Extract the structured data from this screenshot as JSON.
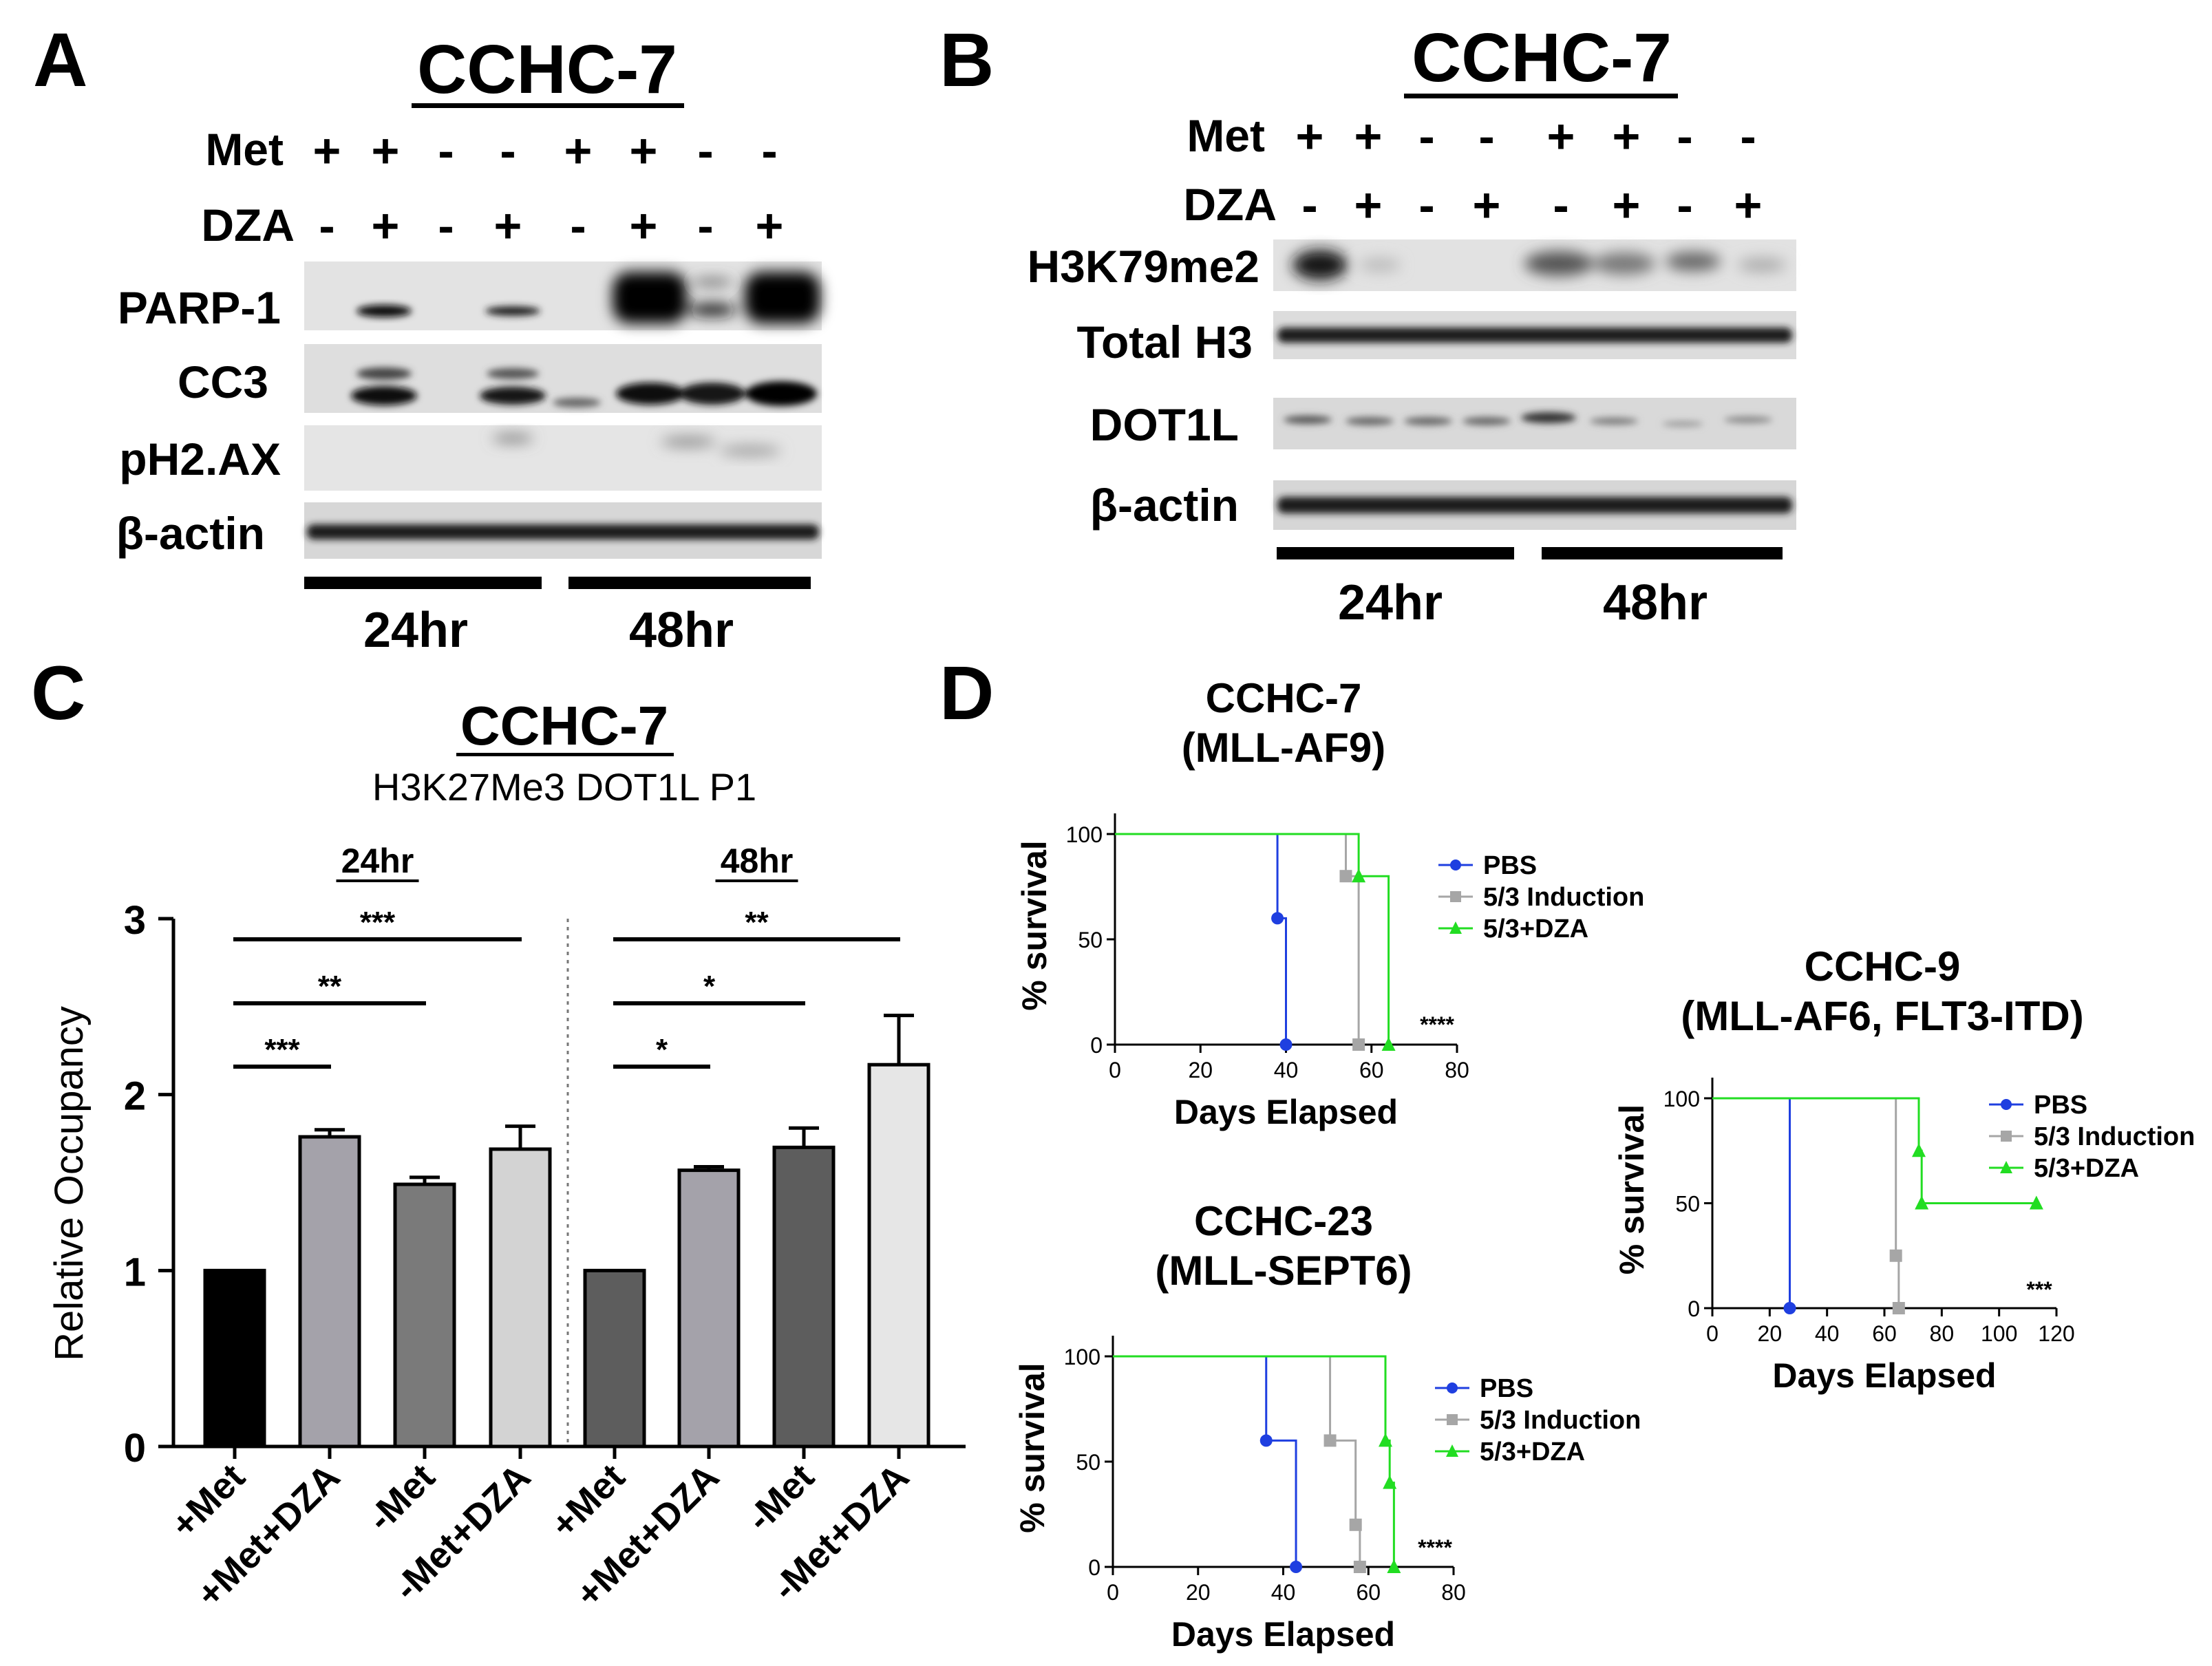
{
  "panel_a": {
    "letter": "A",
    "title": "CCHC-7",
    "row_met_label": "Met",
    "row_dza_label": "DZA",
    "met": [
      "+",
      "+",
      "-",
      "-",
      "+",
      "+",
      "-",
      "-"
    ],
    "dza": [
      "-",
      "+",
      "-",
      "+",
      "-",
      "+",
      "-",
      "+"
    ],
    "blots": [
      "PARP-1",
      "CC3",
      "pH2.AX",
      "β-actin"
    ],
    "times": [
      "24hr",
      "48hr"
    ]
  },
  "panel_b": {
    "letter": "B",
    "title": "CCHC-7",
    "row_met_label": "Met",
    "row_dza_label": "DZA",
    "met": [
      "+",
      "+",
      "-",
      "-",
      "+",
      "+",
      "-",
      "-"
    ],
    "dza": [
      "-",
      "+",
      "-",
      "+",
      "-",
      "+",
      "-",
      "+"
    ],
    "blots": [
      "H3K79me2",
      "Total H3",
      "DOT1L",
      "β-actin"
    ],
    "times": [
      "24hr",
      "48hr"
    ]
  },
  "panel_c": {
    "letter": "C"
  },
  "panel_d": {
    "letter": "D"
  },
  "chart_data": [
    {
      "type": "bar",
      "title": "CCHC-7",
      "subtitle": "H3K27Me3 DOT1L P1",
      "group_labels": [
        "24hr",
        "48hr"
      ],
      "categories": [
        "+Met",
        "+Met+DZA",
        "-Met",
        "-Met+DZA",
        "+Met",
        "+Met+DZA",
        "-Met",
        "-Met+DZA"
      ],
      "values": [
        1.0,
        1.76,
        1.49,
        1.69,
        1.0,
        1.57,
        1.7,
        2.17
      ],
      "errors": [
        0,
        0.04,
        0.04,
        0.13,
        0,
        0.02,
        0.11,
        0.28
      ],
      "colors": [
        "#000000",
        "#a4a2aa",
        "#7a7a7a",
        "#d3d3d3",
        "#5d5d5d",
        "#a4a2aa",
        "#5d5d5d",
        "#e6e6e6"
      ],
      "ylabel": "Relative Occupancy",
      "xlabel": "",
      "ylim": [
        0,
        3
      ],
      "yticks": [
        0,
        1,
        2,
        3
      ],
      "significance": [
        {
          "from": 0,
          "to": 1,
          "label": "***"
        },
        {
          "from": 0,
          "to": 2,
          "label": "**"
        },
        {
          "from": 0,
          "to": 3,
          "label": "***"
        },
        {
          "from": 4,
          "to": 5,
          "label": "*"
        },
        {
          "from": 4,
          "to": 6,
          "label": "*"
        },
        {
          "from": 4,
          "to": 7,
          "label": "**"
        }
      ]
    },
    {
      "type": "line",
      "title": "CCHC-7",
      "subtitle": "(MLL-AF9)",
      "xlabel": "Days Elapsed",
      "ylabel": "% survival",
      "xlim": [
        0,
        80
      ],
      "ylim": [
        0,
        100
      ],
      "xticks": [
        0,
        20,
        40,
        60,
        80
      ],
      "yticks": [
        0,
        50,
        100
      ],
      "annotation": "****",
      "series": [
        {
          "name": "PBS",
          "color": "#1f3fe0",
          "marker": "circle",
          "steps": [
            [
              0,
              100
            ],
            [
              38,
              100
            ],
            [
              38,
              60
            ],
            [
              40,
              60
            ],
            [
              40,
              0
            ]
          ],
          "points": [
            [
              38,
              60
            ],
            [
              40,
              0
            ]
          ]
        },
        {
          "name": "5/3 Induction",
          "color": "#a6a6a6",
          "marker": "square",
          "steps": [
            [
              0,
              100
            ],
            [
              54,
              100
            ],
            [
              54,
              80
            ],
            [
              57,
              80
            ],
            [
              57,
              0
            ]
          ],
          "points": [
            [
              54,
              80
            ],
            [
              57,
              0
            ]
          ]
        },
        {
          "name": "5/3+DZA",
          "color": "#22dd22",
          "marker": "triangle",
          "steps": [
            [
              0,
              100
            ],
            [
              57,
              100
            ],
            [
              57,
              80
            ],
            [
              64,
              80
            ],
            [
              64,
              0
            ]
          ],
          "points": [
            [
              57,
              80
            ],
            [
              64,
              0
            ]
          ]
        }
      ]
    },
    {
      "type": "line",
      "title": "CCHC-23",
      "subtitle": "(MLL-SEPT6)",
      "xlabel": "Days Elapsed",
      "ylabel": "% survival",
      "xlim": [
        0,
        80
      ],
      "ylim": [
        0,
        100
      ],
      "xticks": [
        0,
        20,
        40,
        60,
        80
      ],
      "yticks": [
        0,
        50,
        100
      ],
      "annotation": "****",
      "series": [
        {
          "name": "PBS",
          "color": "#1f3fe0",
          "marker": "circle",
          "steps": [
            [
              0,
              100
            ],
            [
              36,
              100
            ],
            [
              36,
              60
            ],
            [
              43,
              60
            ],
            [
              43,
              0
            ]
          ],
          "points": [
            [
              36,
              60
            ],
            [
              43,
              0
            ]
          ]
        },
        {
          "name": "5/3 Induction",
          "color": "#a6a6a6",
          "marker": "square",
          "steps": [
            [
              0,
              100
            ],
            [
              51,
              100
            ],
            [
              51,
              60
            ],
            [
              57,
              60
            ],
            [
              57,
              20
            ],
            [
              58,
              20
            ],
            [
              58,
              0
            ]
          ],
          "points": [
            [
              51,
              60
            ],
            [
              57,
              20
            ],
            [
              58,
              0
            ]
          ]
        },
        {
          "name": "5/3+DZA",
          "color": "#22dd22",
          "marker": "triangle",
          "steps": [
            [
              0,
              100
            ],
            [
              64,
              100
            ],
            [
              64,
              60
            ],
            [
              65,
              60
            ],
            [
              65,
              40
            ],
            [
              66,
              40
            ],
            [
              66,
              0
            ]
          ],
          "points": [
            [
              64,
              60
            ],
            [
              65,
              40
            ],
            [
              66,
              0
            ]
          ]
        }
      ]
    },
    {
      "type": "line",
      "title": "CCHC-9",
      "subtitle": "(MLL-AF6, FLT3-ITD)",
      "xlabel": "Days Elapsed",
      "ylabel": "% survival",
      "xlim": [
        0,
        120
      ],
      "ylim": [
        0,
        100
      ],
      "xticks": [
        0,
        20,
        40,
        60,
        80,
        100,
        120
      ],
      "yticks": [
        0,
        50,
        100
      ],
      "annotation": "***",
      "series": [
        {
          "name": "PBS",
          "color": "#1f3fe0",
          "marker": "circle",
          "steps": [
            [
              0,
              100
            ],
            [
              27,
              100
            ],
            [
              27,
              0
            ]
          ],
          "points": [
            [
              27,
              0
            ]
          ]
        },
        {
          "name": "5/3 Induction",
          "color": "#a6a6a6",
          "marker": "square",
          "steps": [
            [
              0,
              100
            ],
            [
              64,
              100
            ],
            [
              64,
              25
            ],
            [
              65,
              25
            ],
            [
              65,
              0
            ]
          ],
          "points": [
            [
              64,
              25
            ],
            [
              65,
              0
            ]
          ]
        },
        {
          "name": "5/3+DZA",
          "color": "#22dd22",
          "marker": "triangle",
          "steps": [
            [
              0,
              100
            ],
            [
              72,
              100
            ],
            [
              72,
              75
            ],
            [
              73,
              75
            ],
            [
              73,
              50
            ],
            [
              113,
              50
            ]
          ],
          "points": [
            [
              72,
              75
            ],
            [
              73,
              50
            ],
            [
              113,
              50
            ]
          ]
        }
      ]
    }
  ]
}
